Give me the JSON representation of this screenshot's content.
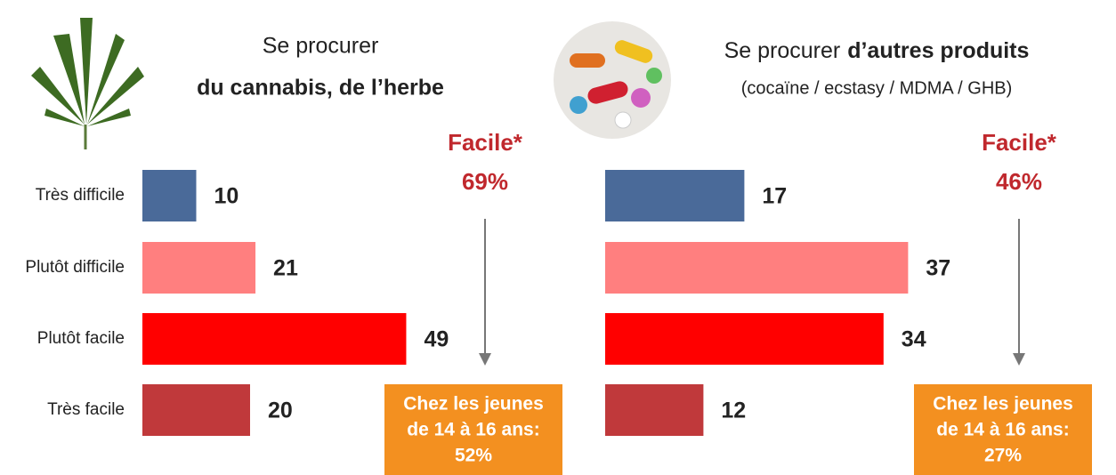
{
  "chart_data": [
    {
      "type": "bar",
      "orientation": "horizontal",
      "title": [
        "Se procurer",
        "du cannabis, de l’herbe"
      ],
      "categories": [
        "Très difficile",
        "Plutôt difficile",
        "Plutôt facile",
        "Très facile"
      ],
      "values": [
        10,
        21,
        49,
        20
      ],
      "colors": [
        "#4a6a99",
        "#ff7f7f",
        "#ff0000",
        "#c0393b"
      ],
      "annotation": [
        "Facile*",
        "69%"
      ],
      "callout": [
        "Chez les jeunes",
        "de 14 à 16 ans:",
        "52%"
      ]
    },
    {
      "type": "bar",
      "orientation": "horizontal",
      "title": [
        "Se procurer",
        "d’autres produits"
      ],
      "subtitle": "(cocaïne / ecstasy / MDMA / GHB)",
      "categories": [
        null,
        null,
        null,
        null
      ],
      "values": [
        17,
        37,
        34,
        12
      ],
      "colors": [
        "#4a6a99",
        "#ff7f7f",
        "#ff0000",
        "#c0393b"
      ],
      "annotation": [
        "Facile*",
        "46%"
      ],
      "callout": [
        "Chez les jeunes",
        "de 14 à 16 ans:",
        "27%"
      ]
    }
  ]
}
